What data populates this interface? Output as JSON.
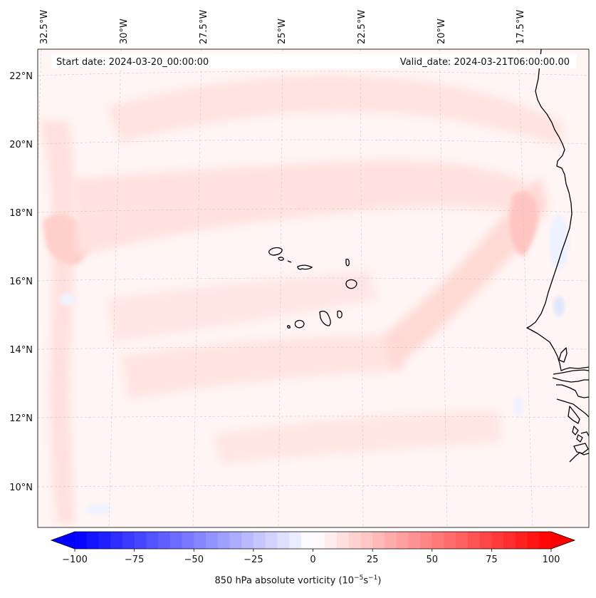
{
  "header": {
    "start_date": "Start date: 2024-03-20_00:00:00",
    "valid_date": "Valid_date: 2024-03-21T06:00:00.00"
  },
  "longitude_labels": [
    "32.5°W",
    "30°W",
    "27.5°W",
    "25°W",
    "22.5°W",
    "20°W",
    "17.5°W"
  ],
  "latitude_labels": [
    "22°N",
    "20°N",
    "18°N",
    "16°N",
    "14°N",
    "12°N",
    "10°N"
  ],
  "colorbar": {
    "title_text": "850 hPa absolute vorticity (10",
    "title_exp1": "−5",
    "title_mid": "s",
    "title_exp2": "−1",
    "title_end": ")",
    "min": -100,
    "max": 100,
    "extend": "both",
    "ticks": [
      "−100",
      "−75",
      "−50",
      "−25",
      "0",
      "25",
      "50",
      "75",
      "100"
    ],
    "colormap": "bwr",
    "low_color": "#0000ff",
    "high_color": "#ff0000"
  },
  "field_colors": {
    "background": "#fff5f4",
    "weak_positive": "#ffe0de",
    "moderate_positive": "#ffc9c6",
    "weak_negative": "#eef2ff",
    "coastline": "#000000",
    "gridline": "#bbbbbb"
  }
}
